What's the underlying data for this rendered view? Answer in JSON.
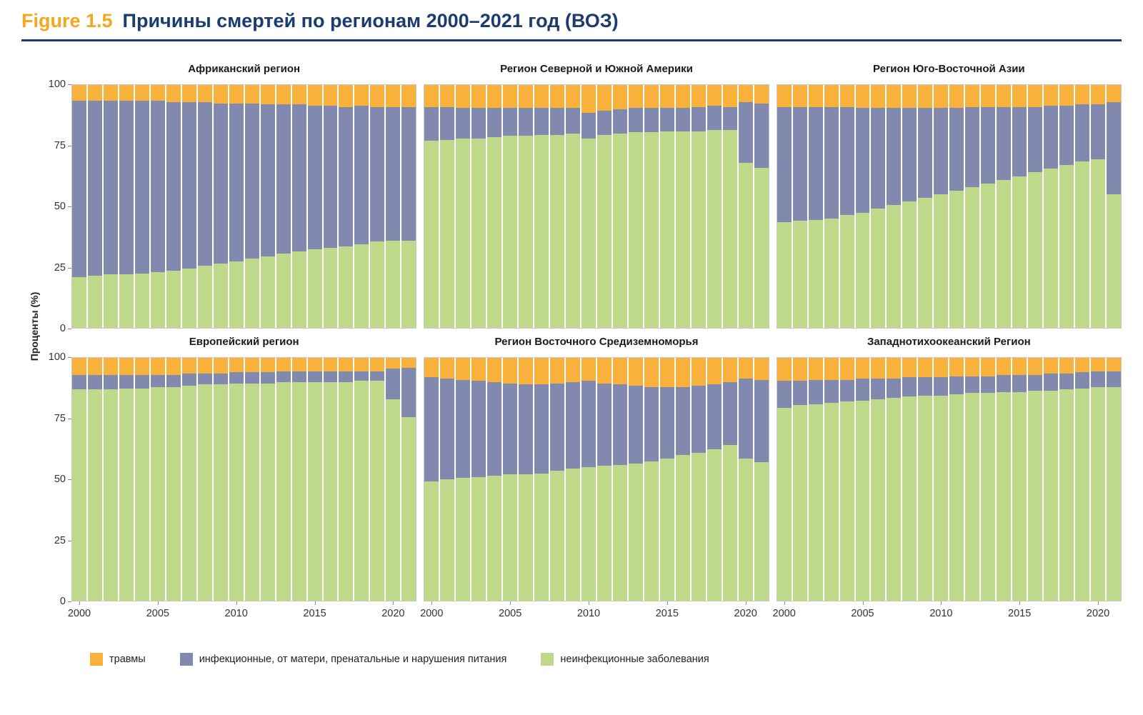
{
  "header": {
    "figure_label": "Figure 1.5",
    "title": "Причины смертей по регионам 2000–2021 год (ВОЗ)"
  },
  "axes": {
    "y_label": "Проценты (%)"
  },
  "colors": {
    "accent_orange": "#F5A81E",
    "navy": "#1C3B6E",
    "injuries": "#F8B13B",
    "infectious": "#8289AE",
    "noncommunicable": "#BFD98B"
  },
  "legend": {
    "items": [
      {
        "label": "травмы",
        "color_key": "injuries"
      },
      {
        "label": "инфекционные, от матери, пренатальные и нарушения питания",
        "color_key": "infectious"
      },
      {
        "label": "неинфекционные заболевания",
        "color_key": "noncommunicable"
      }
    ]
  },
  "chart_data": {
    "type": "bar",
    "stacked": true,
    "percent": true,
    "ylim": [
      0,
      100
    ],
    "y_ticks": [
      "100",
      "75",
      "50",
      "25",
      "0"
    ],
    "years": [
      2000,
      2001,
      2002,
      2003,
      2004,
      2005,
      2006,
      2007,
      2008,
      2009,
      2010,
      2011,
      2012,
      2013,
      2014,
      2015,
      2016,
      2017,
      2018,
      2019,
      2020,
      2021
    ],
    "x_tick_years": [
      2000,
      2005,
      2010,
      2015,
      2020
    ],
    "series_names": {
      "noncommunicable": "неинфекционные заболевания",
      "infectious": "инфекционные, от матери, пренатальные и нарушения питания",
      "injuries": "травмы"
    },
    "panels": [
      {
        "title": "Африканский регион",
        "noncommunicable": [
          21,
          21.5,
          22,
          22,
          22.5,
          23,
          23.5,
          24.5,
          25.5,
          26.5,
          27.5,
          28.5,
          29.5,
          30.5,
          31.5,
          32.5,
          33,
          33.5,
          34.5,
          35.5,
          36,
          36
        ],
        "infectious": [
          72.5,
          72,
          71.5,
          71.5,
          71,
          70.5,
          69.5,
          68.5,
          67.5,
          66,
          65,
          64,
          62.5,
          61.5,
          60.5,
          59,
          58.5,
          57.5,
          57,
          55.5,
          55,
          55
        ],
        "injuries": [
          6.5,
          6.5,
          6.5,
          6.5,
          6.5,
          6.5,
          7,
          7,
          7,
          7.5,
          7.5,
          7.5,
          8,
          8,
          8,
          8.5,
          8.5,
          9,
          8.5,
          9,
          9,
          9
        ]
      },
      {
        "title": "Регион Северной и Южной Америки",
        "noncommunicable": [
          77,
          77.5,
          78,
          78,
          78.5,
          79,
          79,
          79.5,
          79.5,
          80,
          78,
          79.5,
          80,
          80.5,
          80.5,
          81,
          81,
          81,
          81.5,
          81.5,
          68,
          66
        ],
        "infectious": [
          14,
          13.5,
          12.5,
          12.5,
          12,
          11.5,
          11.5,
          11,
          11,
          10.5,
          10.5,
          10,
          10,
          10,
          10,
          9.5,
          9.5,
          10,
          10,
          9.5,
          25,
          26.5
        ],
        "injuries": [
          9,
          9,
          9.5,
          9.5,
          9.5,
          9.5,
          9.5,
          9.5,
          9.5,
          9.5,
          11.5,
          10.5,
          10,
          9.5,
          9.5,
          9.5,
          9.5,
          9,
          8.5,
          9,
          7,
          7.5
        ]
      },
      {
        "title": "Регион Юго-Восточной Азии",
        "noncommunicable": [
          43.5,
          44,
          44.5,
          45,
          46.5,
          47.5,
          49,
          50.5,
          52,
          53.5,
          55,
          56.5,
          58,
          59.5,
          61,
          62.5,
          64,
          65.5,
          67,
          68.5,
          69.5,
          55
        ],
        "infectious": [
          47.5,
          47,
          46.5,
          46,
          44.5,
          43,
          41.5,
          40,
          38.5,
          37,
          35.5,
          34,
          33,
          31.5,
          30,
          28.5,
          27,
          26,
          24.5,
          23.5,
          22.5,
          38
        ],
        "injuries": [
          9,
          9,
          9,
          9,
          9,
          9.5,
          9.5,
          9.5,
          9.5,
          9.5,
          9.5,
          9.5,
          9,
          9,
          9,
          9,
          9,
          8.5,
          8.5,
          8,
          8,
          7
        ]
      },
      {
        "title": "Европейский регион",
        "noncommunicable": [
          87,
          87,
          87,
          87.5,
          87.5,
          88,
          88,
          88.5,
          89,
          89,
          89.5,
          89.5,
          89.5,
          90,
          90,
          90,
          90,
          90,
          90.5,
          90.5,
          83,
          75.5
        ],
        "infectious": [
          6,
          6,
          6,
          5.5,
          5.5,
          5,
          5,
          5,
          4.5,
          4.5,
          4.5,
          4.5,
          4.5,
          4.5,
          4.5,
          4.5,
          4.5,
          4.5,
          4,
          4,
          12.5,
          20.5
        ],
        "injuries": [
          7,
          7,
          7,
          7,
          7,
          7,
          7,
          6.5,
          6.5,
          6.5,
          6,
          6,
          6,
          5.5,
          5.5,
          5.5,
          5.5,
          5.5,
          5.5,
          5.5,
          4.5,
          4
        ]
      },
      {
        "title": "Регион Восточного Средиземноморья",
        "noncommunicable": [
          49,
          50,
          50.5,
          51,
          51.5,
          52,
          52,
          52.5,
          53.5,
          54.5,
          55,
          55.5,
          56,
          56.5,
          57.5,
          58.5,
          60,
          61,
          62.5,
          64,
          58.5,
          57
        ],
        "infectious": [
          43,
          41.5,
          40.5,
          39.5,
          38.5,
          37.5,
          37,
          36.5,
          36,
          35.5,
          35.5,
          34,
          33,
          32,
          30.5,
          29.5,
          28,
          27.5,
          26.5,
          26,
          33,
          34
        ],
        "injuries": [
          8,
          8.5,
          9,
          9.5,
          10,
          10.5,
          11,
          11,
          10.5,
          10,
          9.5,
          10.5,
          11,
          11.5,
          12,
          12,
          12,
          11.5,
          11,
          10,
          8.5,
          9
        ]
      },
      {
        "title": "Западнотихоокеанский Регион",
        "noncommunicable": [
          79.5,
          80.5,
          81,
          81.5,
          82,
          82.5,
          83,
          83.5,
          84,
          84.5,
          84.5,
          85,
          85.5,
          85.5,
          86,
          86,
          86.5,
          86.5,
          87,
          87.5,
          88,
          88
        ],
        "infectious": [
          11,
          10,
          10,
          9.5,
          9,
          9,
          8.5,
          8,
          8,
          7.5,
          7.5,
          7.5,
          7,
          7,
          7,
          7,
          6.5,
          7,
          6.5,
          6.5,
          6.5,
          6.5
        ],
        "injuries": [
          9.5,
          9.5,
          9,
          9,
          9,
          8.5,
          8.5,
          8.5,
          8,
          8,
          8,
          7.5,
          7.5,
          7.5,
          7,
          7,
          7,
          6.5,
          6.5,
          6,
          5.5,
          5.5
        ]
      }
    ]
  }
}
